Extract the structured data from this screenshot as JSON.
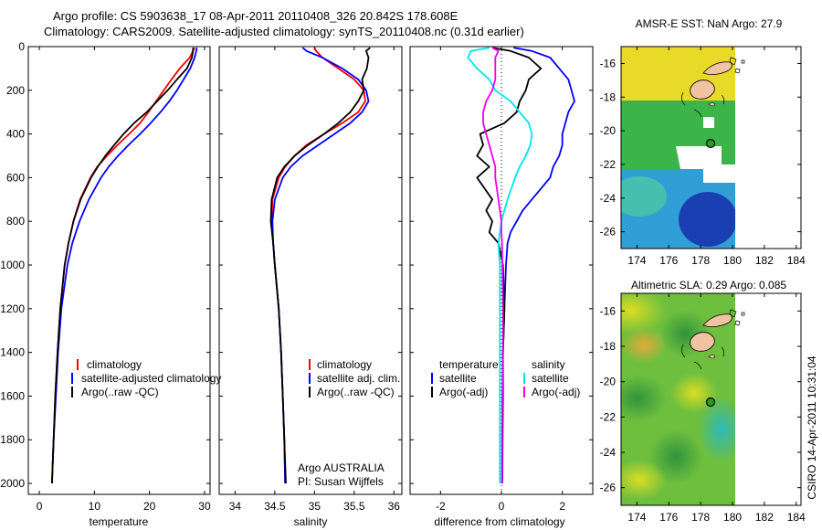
{
  "header": {
    "line1": "Argo profile: CS 5903638_17 08-Apr-2011 20110408_326 20.842S 178.608E",
    "line2": "Climatology: CARS2009. Satellite-adjusted climatology: synTS_20110408.nc (0.31d earlier)"
  },
  "side_label": "CSIRO 14-Apr-2011 10:31:04",
  "colors": {
    "red": "#ff0000",
    "blue": "#0000ff",
    "black": "#000000",
    "cyan": "#00e5ee",
    "magenta": "#ee00ee"
  },
  "chart_data": [
    {
      "type": "line",
      "id": "temperature",
      "xlabel": "temperature",
      "ylabel": "",
      "xlim": [
        -2,
        31
      ],
      "ylim": [
        2050,
        0
      ],
      "xticks": [
        0,
        10,
        20,
        30
      ],
      "yticks": [
        0,
        200,
        400,
        600,
        800,
        1000,
        1200,
        1400,
        1600,
        1800,
        2000
      ],
      "y": [
        5,
        20,
        50,
        100,
        150,
        200,
        250,
        300,
        350,
        400,
        450,
        500,
        550,
        600,
        700,
        800,
        900,
        1000,
        1200,
        1400,
        1600,
        1800,
        2000
      ],
      "series": [
        {
          "name": "climatology",
          "color": "red",
          "x": [
            28.2,
            27.9,
            27.3,
            25.5,
            24,
            22.6,
            21.2,
            19.8,
            18.3,
            16.3,
            14.2,
            12.3,
            10.5,
            9.3,
            7.4,
            6.2,
            5.3,
            4.6,
            3.8,
            3.3,
            2.9,
            2.6,
            2.3
          ]
        },
        {
          "name": "satellite-adjusted climatology",
          "color": "blue",
          "x": [
            28.6,
            28.5,
            28.2,
            27.4,
            26.2,
            25,
            23.6,
            22,
            20.2,
            18.3,
            16.2,
            14.3,
            12.6,
            11.2,
            9,
            7.3,
            6,
            5.1,
            4,
            3.4,
            3,
            2.6,
            2.3
          ]
        },
        {
          "name": "Argo(..raw -QC)",
          "color": "black",
          "x": [
            27.9,
            27.9,
            27.7,
            26.8,
            25,
            23.3,
            21.4,
            19.5,
            17.2,
            15.3,
            13.6,
            12,
            10.6,
            9.4,
            7.5,
            6.2,
            5.3,
            4.6,
            3.8,
            3.3,
            2.9,
            2.6,
            2.3
          ]
        }
      ],
      "legend": {
        "position": "lower-right",
        "entries": [
          "climatology",
          "satellite-adjusted climatology",
          "Argo(..raw -QC)"
        ]
      }
    },
    {
      "type": "line",
      "id": "salinity",
      "xlabel": "salinity",
      "xlim": [
        33.8,
        36.1
      ],
      "ylim": [
        2050,
        0
      ],
      "xticks": [
        34,
        34.5,
        35,
        35.5,
        36
      ],
      "xticklabels": [
        "34",
        "34.5",
        "35",
        "35.5",
        "36"
      ],
      "y": [
        5,
        20,
        50,
        100,
        150,
        200,
        250,
        300,
        350,
        400,
        450,
        500,
        550,
        600,
        700,
        800,
        900,
        1000,
        1200,
        1400,
        1600,
        1800,
        2000
      ],
      "series": [
        {
          "name": "climatology",
          "color": "red",
          "x": [
            35,
            35.02,
            35.1,
            35.3,
            35.5,
            35.62,
            35.64,
            35.55,
            35.35,
            35.12,
            34.9,
            34.75,
            34.63,
            34.55,
            34.47,
            34.46,
            34.48,
            34.5,
            34.55,
            34.58,
            34.6,
            34.62,
            34.63
          ]
        },
        {
          "name": "satellite adj. clim.",
          "color": "blue",
          "x": [
            34.85,
            34.9,
            35.1,
            35.35,
            35.55,
            35.65,
            35.68,
            35.6,
            35.45,
            35.25,
            35.05,
            34.85,
            34.7,
            34.6,
            34.5,
            34.47,
            34.48,
            34.5,
            34.55,
            34.58,
            34.6,
            34.62,
            34.63
          ]
        },
        {
          "name": "Argo(..raw -QC)",
          "color": "black",
          "x": [
            35.7,
            35.65,
            35.68,
            35.66,
            35.6,
            35.62,
            35.55,
            35.45,
            35.3,
            35.12,
            34.92,
            34.75,
            34.62,
            34.53,
            34.46,
            34.45,
            34.48,
            34.5,
            34.55,
            34.58,
            34.6,
            34.62,
            34.64
          ]
        }
      ],
      "legend": {
        "position": "lower-right",
        "entries": [
          "climatology",
          "satellite adj. clim.",
          "Argo(..raw -QC)"
        ]
      },
      "annotation": [
        "Argo AUSTRALIA",
        "PI: Susan Wijffels"
      ]
    },
    {
      "type": "line",
      "id": "difference",
      "xlabel": "difference from climatology",
      "xlim": [
        -3,
        3
      ],
      "ylim": [
        2050,
        0
      ],
      "xticks": [
        -2,
        0,
        2
      ],
      "zero_line": true,
      "y": [
        5,
        20,
        50,
        100,
        150,
        200,
        250,
        300,
        350,
        400,
        450,
        500,
        550,
        600,
        700,
        750,
        800,
        850,
        900,
        1000,
        1200,
        1400,
        1600,
        1800,
        2000
      ],
      "series": [
        {
          "name": "temperature satellite",
          "color": "blue",
          "x": [
            0.4,
            1,
            1.6,
            1.9,
            2.2,
            2.3,
            2.4,
            2.2,
            2.1,
            2,
            2,
            1.9,
            1.7,
            1.6,
            1,
            0.7,
            0.5,
            0.3,
            0.2,
            0.15,
            0.1,
            0.05,
            0.05,
            0.04,
            0.03
          ]
        },
        {
          "name": "temperature Argo(-adj)",
          "color": "black",
          "x": [
            -0.3,
            0.3,
            0.9,
            1.3,
            0.9,
            0.8,
            0.6,
            0.5,
            0.1,
            -0.7,
            -0.6,
            -0.8,
            -0.4,
            -0.8,
            -0.3,
            -0.5,
            -0.3,
            -0.4,
            -0.1,
            0.05,
            0.1,
            0.05,
            0.04,
            0.03,
            0.02
          ]
        },
        {
          "name": "salinity satellite",
          "color": "cyan",
          "x": [
            -0.4,
            -1,
            -1.1,
            -0.8,
            -0.4,
            -0.2,
            0.3,
            0.6,
            0.9,
            1,
            0.95,
            0.8,
            0.6,
            0.45,
            0.2,
            0.1,
            0,
            -0.05,
            -0.1,
            -0.05,
            -0.05,
            -0.05,
            -0.05,
            -0.05,
            -0.05
          ]
        },
        {
          "name": "salinity Argo(-adj)",
          "color": "magenta",
          "x": [
            -0.3,
            -0.1,
            -0.2,
            -0.2,
            -0.2,
            -0.3,
            -0.5,
            -0.6,
            -0.6,
            -0.5,
            -0.4,
            -0.3,
            -0.2,
            -0.2,
            -0.1,
            -0.05,
            0,
            0,
            0.02,
            0.03,
            0.05,
            0.05,
            0.03,
            0.02,
            0.02
          ]
        }
      ],
      "legend": {
        "position": "lower",
        "groups": [
          "temperature",
          "salinity"
        ],
        "entries": [
          "satellite",
          "Argo(-adj)",
          "satellite",
          "Argo(-adj)"
        ]
      }
    },
    {
      "type": "heatmap",
      "id": "sst-map",
      "title": "AMSR-E SST: NaN  Argo: 27.9",
      "xlim": [
        173,
        184.3
      ],
      "ylim": [
        -27,
        -15
      ],
      "xticks": [
        174,
        176,
        178,
        180,
        182,
        184
      ],
      "yticks": [
        -16,
        -18,
        -20,
        -22,
        -24,
        -26
      ],
      "data_extent_lon": [
        173,
        180
      ],
      "argo_position": {
        "lon": 178.608,
        "lat": -20.842
      }
    },
    {
      "type": "heatmap",
      "id": "sla-map",
      "title": "Altimetric SLA: 0.29  Argo: 0.085",
      "xlim": [
        173,
        184.3
      ],
      "ylim": [
        -27,
        -15
      ],
      "xticks": [
        174,
        176,
        178,
        180,
        182,
        184
      ],
      "yticks": [
        -16,
        -18,
        -20,
        -22,
        -24,
        -26
      ],
      "data_extent_lon": [
        173,
        180
      ],
      "argo_position": {
        "lon": 178.608,
        "lat": -20.842
      }
    }
  ]
}
